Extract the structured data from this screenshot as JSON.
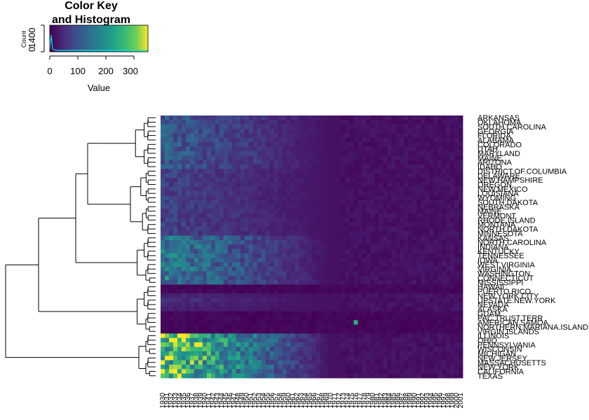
{
  "chart_data": {
    "type": "heatmap",
    "color_key": {
      "title_line1": "Color Key",
      "title_line2": "and Histogram",
      "xlabel": "Value",
      "ylabel": "Count",
      "x_ticks": [
        "0",
        "100",
        "200",
        "300"
      ],
      "y_ticks": [
        "0",
        "1400"
      ],
      "value_range": [
        0,
        350
      ],
      "colormap": "viridis"
    },
    "rows": [
      "ARKANSAS",
      "OKLAHOMA",
      "SOUTH.CAROLINA",
      "GEORGIA",
      "FLORIDA",
      "ALABAMA",
      "COLORADO",
      "UTAH",
      "MARYLAND",
      "MAINE",
      "ARIZONA",
      "IDAHO",
      "DISTRICT.OF.COLUMBIA",
      "DELAWARE",
      "NEW.HAMPSHIRE",
      "OREGON",
      "NEW.MEXICO",
      "LOUISIANA",
      "WYOMING",
      "SOUTH.DAKOTA",
      "NEBRASKA",
      "MAINE",
      "VERMONT",
      "RHODE.ISLAND",
      "MONTANA",
      "NORTH.DAKOTA",
      "MINNESOTA",
      "KANSAS",
      "NORTH.CAROLINA",
      "INDIANA",
      "KENTUCKY",
      "TENNESSEE",
      "IOWA",
      "WEST.VIRGINIA",
      "VIRGINIA",
      "WASHINGTON",
      "CONNECTICUT",
      "MISSISSIPPI",
      "HAWAII",
      "PUERTO.RICO",
      "NEW.YORK.CITY",
      "UPSTATE.NEW.YORK",
      "NEVADA",
      "ALASKA",
      "GUAM",
      "PAC.TRUST.TERR",
      "AMERICAN.SAMOA",
      "NORTHERN.MARIANA.ISLANDS",
      "VIRGIN.ISLANDS",
      "ILLINOIS",
      "OHIO",
      "PENNSYLVANIA",
      "WISCONSIN",
      "MICHIGAN",
      "NEW.JERSEY",
      "MASSACHUSETTS",
      "NEW.YORK",
      "CALIFORNIA",
      "TEXAS"
    ],
    "columns": [
      "1930",
      "1931",
      "1932",
      "1933",
      "1934",
      "1935",
      "1936",
      "1937",
      "1938",
      "1939",
      "1940",
      "1941",
      "1942",
      "1943",
      "1944",
      "1945",
      "1946",
      "1947",
      "1948",
      "1949",
      "1950",
      "1951",
      "1952",
      "1953",
      "1954",
      "1955",
      "1956",
      "1957",
      "1958",
      "1959",
      "1960",
      "1961",
      "1962",
      "1963",
      "1964",
      "1965",
      "1966",
      "1967",
      "1968",
      "1969",
      "1970",
      "1971",
      "1972",
      "1973",
      "1974",
      "1975",
      "1976",
      "1977",
      "1978",
      "1979",
      "1980",
      "1981",
      "1982",
      "1983",
      "1984",
      "1985",
      "1986",
      "1987",
      "1988",
      "1989",
      "1990",
      "1991",
      "1992",
      "1993",
      "1994",
      "1995",
      "1996",
      "1997",
      "1998",
      "1999",
      "2000",
      "2001"
    ],
    "row_group_levels": [
      0.55,
      0.55,
      0.55,
      0.55,
      0.55,
      0.55,
      0.55,
      0.55,
      0.55,
      0.55,
      0.55,
      0.55,
      0.35,
      0.35,
      0.35,
      0.35,
      0.35,
      0.35,
      0.35,
      0.35,
      0.35,
      0.35,
      0.35,
      0.35,
      0.35,
      0.35,
      0.35,
      0.85,
      0.85,
      0.85,
      0.85,
      0.85,
      0.85,
      0.85,
      0.85,
      0.85,
      0.85,
      0.85,
      0.0,
      0.0,
      0.15,
      0.2,
      0.15,
      0.1,
      0.0,
      0.0,
      0.0,
      0.0,
      0.0,
      1.6,
      1.6,
      1.7,
      1.5,
      1.5,
      1.6,
      1.6,
      1.6,
      1.5,
      1.6
    ],
    "highlight_cell": {
      "row": "AMERICAN.SAMOA",
      "column": "1976",
      "value": 250
    }
  }
}
